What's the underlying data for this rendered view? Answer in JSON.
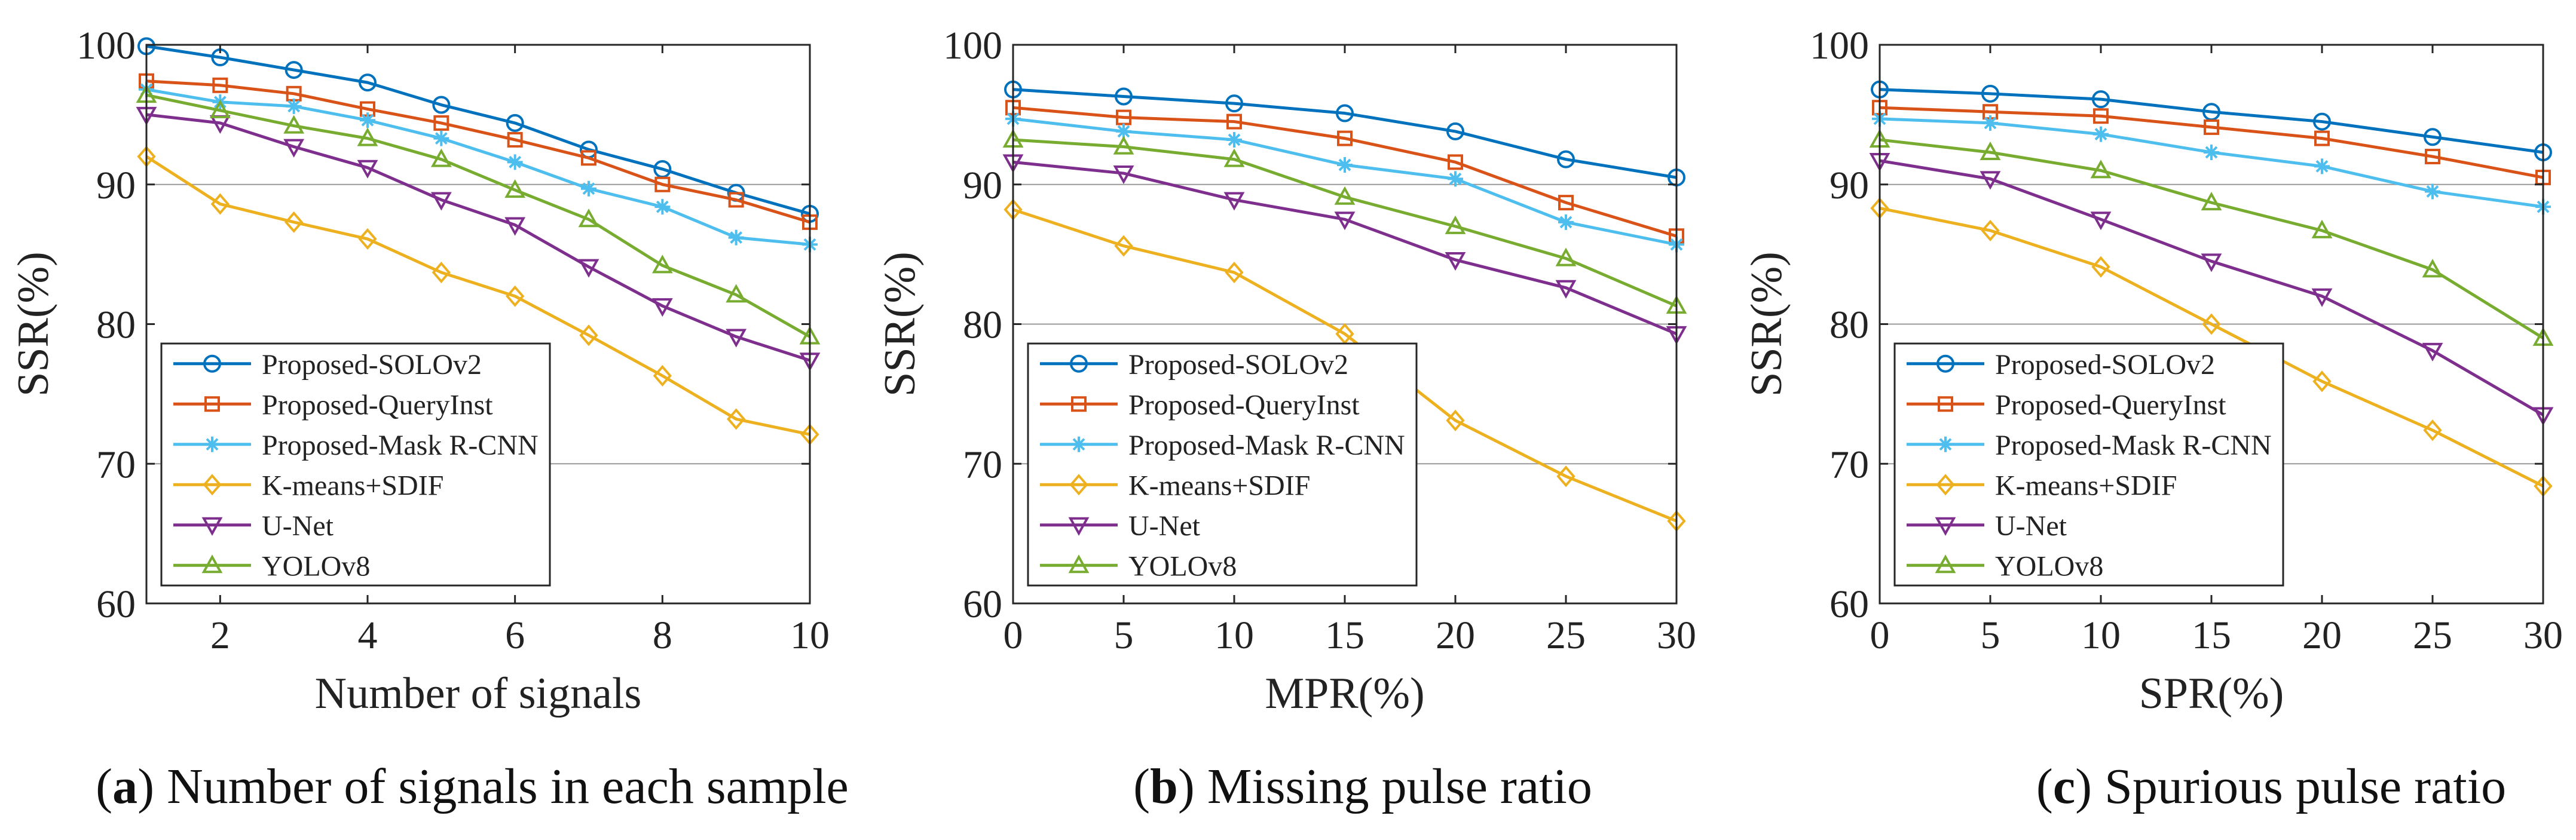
{
  "colors": {
    "Proposed-SOLOv2": "#0072BD",
    "Proposed-QueryInst": "#D95319",
    "Proposed-Mask R-CNN": "#4DBEEE",
    "K-means+SDIF": "#EDB120",
    "U-Net": "#7E2F8E",
    "YOLOv8": "#77AC30"
  },
  "markers": {
    "Proposed-SOLOv2": "circle",
    "Proposed-QueryInst": "square",
    "Proposed-Mask R-CNN": "star",
    "K-means+SDIF": "diamond",
    "U-Net": "triangle-down",
    "YOLOv8": "triangle-up"
  },
  "captions": [
    {
      "letter": "a",
      "text": "Number of signals in each sample"
    },
    {
      "letter": "b",
      "text": "Missing pulse ratio"
    },
    {
      "letter": "c",
      "text": "Spurious pulse ratio"
    }
  ],
  "chart_data": [
    {
      "type": "line",
      "title": "",
      "xlabel": "Number of signals",
      "ylabel": "SSR(%)",
      "xlim": [
        1,
        10
      ],
      "ylim": [
        60,
        100
      ],
      "xticks": [
        2,
        4,
        6,
        8,
        10
      ],
      "yticks": [
        60,
        70,
        80,
        90,
        100
      ],
      "grid_y": [
        70,
        90
      ],
      "legend_position": "bottom-left",
      "x": [
        1,
        2,
        3,
        4,
        5,
        6,
        7,
        8,
        9,
        10
      ],
      "series": [
        {
          "name": "Proposed-SOLOv2",
          "values": [
            99.9,
            99.1,
            98.2,
            97.3,
            95.7,
            94.4,
            92.5,
            91.1,
            89.4,
            87.9
          ]
        },
        {
          "name": "Proposed-QueryInst",
          "values": [
            97.4,
            97.1,
            96.5,
            95.4,
            94.4,
            93.2,
            91.9,
            90.0,
            88.9,
            87.3
          ]
        },
        {
          "name": "Proposed-Mask R-CNN",
          "values": [
            96.8,
            95.9,
            95.6,
            94.6,
            93.3,
            91.6,
            89.7,
            88.4,
            86.2,
            85.7
          ]
        },
        {
          "name": "K-means+SDIF",
          "values": [
            92.0,
            88.6,
            87.3,
            86.1,
            83.7,
            82.0,
            79.2,
            76.3,
            73.2,
            72.1
          ]
        },
        {
          "name": "U-Net",
          "values": [
            95.0,
            94.4,
            92.7,
            91.2,
            88.9,
            87.1,
            84.1,
            81.3,
            79.1,
            77.4
          ]
        },
        {
          "name": "YOLOv8",
          "values": [
            96.4,
            95.3,
            94.2,
            93.3,
            91.8,
            89.6,
            87.5,
            84.2,
            82.1,
            79.1
          ]
        }
      ]
    },
    {
      "type": "line",
      "title": "",
      "xlabel": "MPR(%)",
      "ylabel": "SSR(%)",
      "xlim": [
        0,
        30
      ],
      "ylim": [
        60,
        100
      ],
      "xticks": [
        0,
        5,
        10,
        15,
        20,
        25,
        30
      ],
      "yticks": [
        60,
        70,
        80,
        90,
        100
      ],
      "grid_y": [
        70,
        80,
        90
      ],
      "legend_position": "bottom-left",
      "x": [
        0,
        5,
        10,
        15,
        20,
        25,
        30
      ],
      "series": [
        {
          "name": "Proposed-SOLOv2",
          "values": [
            96.8,
            96.3,
            95.8,
            95.1,
            93.8,
            91.8,
            90.5
          ]
        },
        {
          "name": "Proposed-QueryInst",
          "values": [
            95.5,
            94.8,
            94.5,
            93.3,
            91.6,
            88.7,
            86.3
          ]
        },
        {
          "name": "Proposed-Mask R-CNN",
          "values": [
            94.7,
            93.8,
            93.2,
            91.4,
            90.4,
            87.3,
            85.7
          ]
        },
        {
          "name": "K-means+SDIF",
          "values": [
            88.2,
            85.6,
            83.7,
            79.3,
            73.1,
            69.1,
            65.9
          ]
        },
        {
          "name": "U-Net",
          "values": [
            91.6,
            90.8,
            88.9,
            87.5,
            84.6,
            82.6,
            79.3
          ]
        },
        {
          "name": "YOLOv8",
          "values": [
            93.2,
            92.7,
            91.8,
            89.1,
            87.0,
            84.7,
            81.3
          ]
        }
      ]
    },
    {
      "type": "line",
      "title": "",
      "xlabel": "SPR(%)",
      "ylabel": "SSR(%)",
      "xlim": [
        0,
        30
      ],
      "ylim": [
        60,
        100
      ],
      "xticks": [
        0,
        5,
        10,
        15,
        20,
        25,
        30
      ],
      "yticks": [
        60,
        70,
        80,
        90,
        100
      ],
      "grid_y": [
        70,
        80,
        90
      ],
      "legend_position": "bottom-left",
      "x": [
        0,
        5,
        10,
        15,
        20,
        25,
        30
      ],
      "series": [
        {
          "name": "Proposed-SOLOv2",
          "values": [
            96.8,
            96.5,
            96.1,
            95.2,
            94.5,
            93.4,
            92.3
          ]
        },
        {
          "name": "Proposed-QueryInst",
          "values": [
            95.5,
            95.2,
            94.9,
            94.1,
            93.3,
            92.0,
            90.5
          ]
        },
        {
          "name": "Proposed-Mask R-CNN",
          "values": [
            94.7,
            94.4,
            93.6,
            92.3,
            91.3,
            89.5,
            88.4
          ]
        },
        {
          "name": "K-means+SDIF",
          "values": [
            88.3,
            86.7,
            84.1,
            80.0,
            75.9,
            72.4,
            68.4
          ]
        },
        {
          "name": "U-Net",
          "values": [
            91.7,
            90.4,
            87.5,
            84.5,
            82.0,
            78.1,
            73.5
          ]
        },
        {
          "name": "YOLOv8",
          "values": [
            93.2,
            92.3,
            91.0,
            88.7,
            86.7,
            83.9,
            79.0
          ]
        }
      ]
    }
  ]
}
